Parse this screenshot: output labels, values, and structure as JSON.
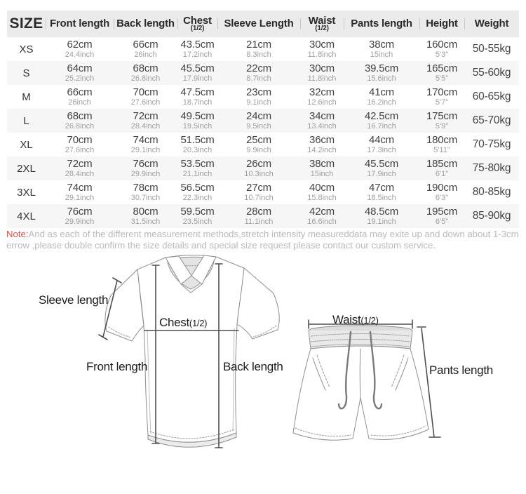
{
  "table": {
    "columns": [
      {
        "label": "SIZE",
        "sub": ""
      },
      {
        "label": "Front length",
        "sub": ""
      },
      {
        "label": "Back length",
        "sub": ""
      },
      {
        "label": "Chest",
        "sub": "(1/2)"
      },
      {
        "label": "Sleeve Length",
        "sub": ""
      },
      {
        "label": "Waist",
        "sub": "(1/2)"
      },
      {
        "label": "Pants length",
        "sub": ""
      },
      {
        "label": "Height",
        "sub": ""
      },
      {
        "label": "Weight",
        "sub": ""
      }
    ],
    "rows": [
      {
        "size": "XS",
        "cells": [
          [
            "62cm",
            "24.4inch"
          ],
          [
            "66cm",
            "26inch"
          ],
          [
            "43.5cm",
            "17.2inch"
          ],
          [
            "21cm",
            "8.3inch"
          ],
          [
            "30cm",
            "11.8inch"
          ],
          [
            "38cm",
            "15inch"
          ],
          [
            "160cm",
            "5'3\""
          ]
        ],
        "weight": "50-55kg"
      },
      {
        "size": "S",
        "cells": [
          [
            "64cm",
            "25.2inch"
          ],
          [
            "68cm",
            "26.8inch"
          ],
          [
            "45.5cm",
            "17.9inch"
          ],
          [
            "22cm",
            "8.7inch"
          ],
          [
            "30cm",
            "11.8inch"
          ],
          [
            "39.5cm",
            "15.6inch"
          ],
          [
            "165cm",
            "5'5\""
          ]
        ],
        "weight": "55-60kg"
      },
      {
        "size": "M",
        "cells": [
          [
            "66cm",
            "26inch"
          ],
          [
            "70cm",
            "27.6inch"
          ],
          [
            "47.5cm",
            "18.7inch"
          ],
          [
            "23cm",
            "9.1inch"
          ],
          [
            "32cm",
            "12.6inch"
          ],
          [
            "41cm",
            "16.2inch"
          ],
          [
            "170cm",
            "5'7\""
          ]
        ],
        "weight": "60-65kg"
      },
      {
        "size": "L",
        "cells": [
          [
            "68cm",
            "26.8inch"
          ],
          [
            "72cm",
            "28.4inch"
          ],
          [
            "49.5cm",
            "19.5inch"
          ],
          [
            "24cm",
            "9.5inch"
          ],
          [
            "34cm",
            "13.4inch"
          ],
          [
            "42.5cm",
            "16.7inch"
          ],
          [
            "175cm",
            "5'9\""
          ]
        ],
        "weight": "65-70kg"
      },
      {
        "size": "XL",
        "cells": [
          [
            "70cm",
            "27.6inch"
          ],
          [
            "74cm",
            "29.1inch"
          ],
          [
            "51.5cm",
            "20.3inch"
          ],
          [
            "25cm",
            "9.9inch"
          ],
          [
            "36cm",
            "14.2inch"
          ],
          [
            "44cm",
            "17.3inch"
          ],
          [
            "180cm",
            "5'11\""
          ]
        ],
        "weight": "70-75kg"
      },
      {
        "size": "2XL",
        "cells": [
          [
            "72cm",
            "28.4inch"
          ],
          [
            "76cm",
            "29.9inch"
          ],
          [
            "53.5cm",
            "21.1inch"
          ],
          [
            "26cm",
            "10.3inch"
          ],
          [
            "38cm",
            "15inch"
          ],
          [
            "45.5cm",
            "17.9inch"
          ],
          [
            "185cm",
            "6'1\""
          ]
        ],
        "weight": "75-80kg"
      },
      {
        "size": "3XL",
        "cells": [
          [
            "74cm",
            "29.1inch"
          ],
          [
            "78cm",
            "30.7inch"
          ],
          [
            "56.5cm",
            "22.3inch"
          ],
          [
            "27cm",
            "10.7inch"
          ],
          [
            "40cm",
            "15.8inch"
          ],
          [
            "47cm",
            "18.5inch"
          ],
          [
            "190cm",
            "6'3\""
          ]
        ],
        "weight": "80-85kg"
      },
      {
        "size": "4XL",
        "cells": [
          [
            "76cm",
            "29.9inch"
          ],
          [
            "80cm",
            "31.5inch"
          ],
          [
            "59.5cm",
            "23.5inch"
          ],
          [
            "28cm",
            "11.1inch"
          ],
          [
            "42cm",
            "16.6inch"
          ],
          [
            "48.5cm",
            "19.1inch"
          ],
          [
            "195cm",
            "6'5\""
          ]
        ],
        "weight": "85-90kg"
      }
    ]
  },
  "note": {
    "prefix": "Note:",
    "text": "And as each of the different measurement methods,stretch intensity measureddata may exite up and down about 1-3cm errow ,please double confirm the size details and special size request please contact our custom service."
  },
  "diagram": {
    "shirt": {
      "sleeve_label": "Sleeve length",
      "chest_label": "Chest",
      "chest_half": "(1/2)",
      "front_label": "Front length",
      "back_label": "Back length"
    },
    "shorts": {
      "waist_label": "Waist",
      "waist_half": "(1/2)",
      "pants_label": "Pants length"
    }
  },
  "colors": {
    "note_red": "#e0504d",
    "header_bg": "#ebebeb",
    "stripe_bg": "#f6f6f6",
    "secondary_text": "#9e9e9e"
  }
}
